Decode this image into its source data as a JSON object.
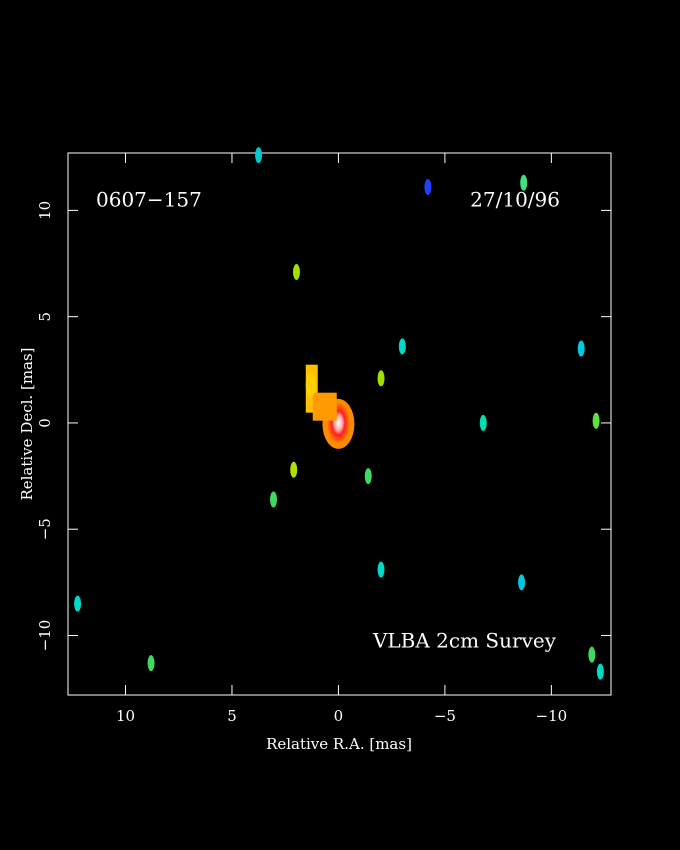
{
  "chart_data": {
    "type": "scatter",
    "labels": [
      "0607−157",
      "27/10/96",
      "VLBA 2cm Survey"
    ],
    "xlabel": "Relative R.A. [mas]",
    "ylabel": "Relative Decl. [mas]",
    "xlim": [
      12.7,
      -12.8
    ],
    "ylim": [
      -12.8,
      12.7
    ],
    "xticks": [
      10,
      5,
      0,
      {
        "value": -5,
        "label": "−5"
      },
      {
        "value": -10,
        "label": "−10"
      }
    ],
    "yticks": [
      {
        "value": -10,
        "label": "−10"
      },
      {
        "value": -5,
        "label": "−5"
      },
      0,
      5,
      10
    ],
    "x": [
      0,
      1.3,
      3.75,
      1.97,
      -3.0,
      -2.0,
      -8.7,
      -4.2,
      -11.4,
      -12.1,
      -6.8,
      2.1,
      -1.4,
      3.05,
      -2.0,
      -8.6,
      12.25,
      8.8,
      -11.9,
      -12.3
    ],
    "y": [
      0,
      1.8,
      12.6,
      7.1,
      3.6,
      2.1,
      11.3,
      11.1,
      3.5,
      0.1,
      0,
      -2.2,
      -2.5,
      -3.6,
      -6.9,
      -7.5,
      -8.5,
      -11.3,
      -10.9,
      -11.7
    ],
    "colors": [
      "#ff3a00",
      "#ffd000",
      "#00c8d0",
      "#a0e000",
      "#00d8c8",
      "#a0e000",
      "#40e080",
      "#2040ff",
      "#00c8e0",
      "#60e040",
      "#00e0b0",
      "#b0e000",
      "#40d860",
      "#40d860",
      "#00d8c8",
      "#00c8e0",
      "#00d8c8",
      "#40d860",
      "#40d860",
      "#00d8c8"
    ]
  }
}
